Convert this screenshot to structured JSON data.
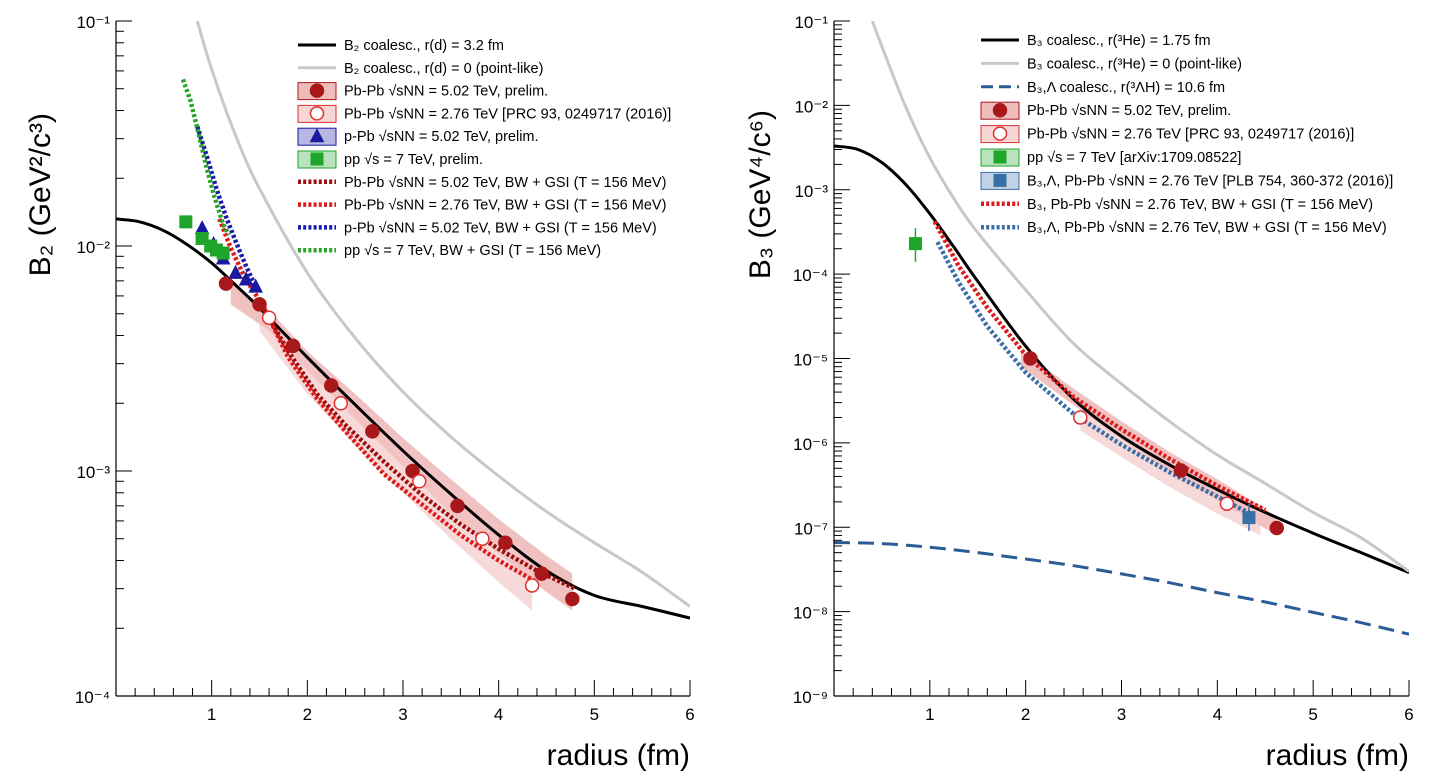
{
  "chart_data": [
    {
      "type": "line",
      "ylabel": "B₂ (GeV²/c³)",
      "xlabel": "radius (fm)",
      "xlim": [
        0,
        6
      ],
      "ylim": [
        0.0001,
        0.1
      ],
      "yscale": "log",
      "xticks": [
        "1",
        "2",
        "3",
        "4",
        "5",
        "6"
      ],
      "yticks": [
        "10⁻⁴",
        "10⁻³",
        "10⁻²",
        "10⁻¹"
      ],
      "legend_position": "top-right",
      "series": [
        {
          "name": "B₂ coalesc., r(d) = 3.2 fm",
          "kind": "line",
          "color": "#000000",
          "x": [
            0,
            0.25,
            0.5,
            0.75,
            1.0,
            1.25,
            1.5,
            2.0,
            2.5,
            3.0,
            3.5,
            4.0,
            4.5,
            5.0,
            5.5,
            6.0
          ],
          "y": [
            0.0132,
            0.0128,
            0.0117,
            0.0101,
            0.0084,
            0.0067,
            0.0053,
            0.0032,
            0.00197,
            0.00123,
            0.00079,
            0.00052,
            0.00036,
            0.00028,
            0.00025,
            0.000222
          ]
        },
        {
          "name": "B₂ coalesc., r(d) = 0 (point-like)",
          "kind": "line",
          "color": "#c8c8c8",
          "x": [
            0.85,
            1.0,
            1.25,
            1.5,
            2.0,
            2.5,
            3.0,
            3.5,
            4.0,
            4.5,
            5.0,
            5.5,
            6.0
          ],
          "y": [
            0.1,
            0.061,
            0.031,
            0.018,
            0.0076,
            0.0039,
            0.00225,
            0.00142,
            0.00095,
            0.00066,
            0.00048,
            0.000355,
            0.00025
          ]
        },
        {
          "name": "Pb-Pb √sNN = 5.02 TeV, prelim.",
          "kind": "marker",
          "marker": "circle",
          "filled": true,
          "color": "#a8181a",
          "x": [
            1.15,
            1.5,
            1.85,
            2.25,
            2.68,
            3.1,
            3.57,
            4.07,
            4.45,
            4.77
          ],
          "y": [
            0.0068,
            0.0055,
            0.0036,
            0.0024,
            0.0015,
            0.001,
            0.0007,
            0.00048,
            0.00035,
            0.00027
          ]
        },
        {
          "name": "Pb-Pb √sNN = 2.76 TeV [PRC 93, 0249717 (2016)]",
          "kind": "marker",
          "marker": "circle",
          "filled": false,
          "color": "#e03030",
          "x": [
            1.6,
            2.35,
            3.17,
            3.83,
            4.35
          ],
          "y": [
            0.0048,
            0.002,
            0.0009,
            0.0005,
            0.00031
          ]
        },
        {
          "name": "p-Pb √sNN = 5.02 TeV, prelim.",
          "kind": "marker",
          "marker": "triangle",
          "filled": true,
          "color": "#1a1aa0",
          "x": [
            0.9,
            1.02,
            1.12,
            1.25,
            1.36,
            1.46
          ],
          "y": [
            0.012,
            0.0102,
            0.0088,
            0.0076,
            0.0071,
            0.0066
          ]
        },
        {
          "name": "pp √s = 7 TeV, prelim.",
          "kind": "marker",
          "marker": "square",
          "filled": true,
          "color": "#1fa52a",
          "x": [
            0.73,
            0.9,
            0.99,
            1.05,
            1.12
          ],
          "y": [
            0.0128,
            0.0108,
            0.01,
            0.0096,
            0.0093
          ]
        },
        {
          "name": "Pb-Pb √sNN = 5.02 TeV, BW + GSI (T = 156 MeV)",
          "kind": "dotted",
          "color": "#9a0e0e",
          "x": [
            1.55,
            1.8,
            2.1,
            2.4,
            2.8,
            3.2,
            3.6,
            4.0,
            4.4,
            4.8
          ],
          "y": [
            0.0052,
            0.0034,
            0.0022,
            0.0016,
            0.0011,
            0.00078,
            0.00058,
            0.00045,
            0.00036,
            0.0003
          ]
        },
        {
          "name": "Pb-Pb √sNN = 2.76 TeV, BW + GSI (T = 156 MeV)",
          "kind": "dotted",
          "color": "#dd1a1a",
          "x": [
            1.08,
            1.2,
            1.35,
            1.55,
            1.8,
            2.1,
            2.4,
            2.8,
            3.2,
            3.6,
            4.0,
            4.4
          ],
          "y": [
            0.0132,
            0.0098,
            0.0072,
            0.0053,
            0.0032,
            0.0021,
            0.0015,
            0.00097,
            0.00071,
            0.00052,
            0.0004,
            0.00032
          ]
        },
        {
          "name": "p-Pb √sNN = 5.02 TeV, BW + GSI (T = 156 MeV)",
          "kind": "dotted",
          "color": "#1a1ab0",
          "x": [
            0.85,
            0.95,
            1.05,
            1.15,
            1.25,
            1.35,
            1.48
          ],
          "y": [
            0.034,
            0.025,
            0.018,
            0.0135,
            0.0105,
            0.0083,
            0.0063
          ]
        },
        {
          "name": "pp √s = 7 TeV, BW + GSI (T = 156 MeV)",
          "kind": "dotted",
          "color": "#2aa52a",
          "x": [
            0.7,
            0.78,
            0.86,
            0.94,
            1.02,
            1.12,
            1.18
          ],
          "y": [
            0.055,
            0.044,
            0.032,
            0.023,
            0.017,
            0.0125,
            0.0112
          ]
        }
      ],
      "bands": [
        {
          "of": "Pb-Pb √sNN = 5.02 TeV, prelim.",
          "color": "#e8a0a0",
          "x": [
            1.2,
            1.6,
            2.0,
            2.5,
            3.0,
            3.5,
            4.0,
            4.5,
            4.77
          ],
          "lower": [
            0.0055,
            0.0042,
            0.0028,
            0.0017,
            0.00105,
            0.00065,
            0.00043,
            0.00029,
            0.00024
          ],
          "upper": [
            0.0068,
            0.0052,
            0.0034,
            0.0022,
            0.0014,
            0.00092,
            0.00061,
            0.00042,
            0.00035
          ]
        },
        {
          "of": "Pb-Pb √sNN = 2.76 TeV [PRC 93, 0249717 (2016)]",
          "color": "#f4c4c4",
          "x": [
            1.5,
            2.0,
            2.5,
            3.0,
            3.5,
            4.0,
            4.35
          ],
          "lower": [
            0.0042,
            0.0022,
            0.0013,
            0.0008,
            0.0005,
            0.00032,
            0.00024
          ],
          "upper": [
            0.0058,
            0.0033,
            0.0021,
            0.0013,
            0.00083,
            0.00055,
            0.00042
          ]
        }
      ]
    },
    {
      "type": "line",
      "ylabel": "B₃ (GeV⁴/c⁶)",
      "xlabel": "radius (fm)",
      "xlim": [
        0,
        6
      ],
      "ylim": [
        1e-09,
        0.1
      ],
      "yscale": "log",
      "xticks": [
        "1",
        "2",
        "3",
        "4",
        "5",
        "6"
      ],
      "yticks": [
        "10⁻⁹",
        "10⁻⁸",
        "10⁻⁷",
        "10⁻⁶",
        "10⁻⁵",
        "10⁻⁴",
        "10⁻³",
        "10⁻²",
        "10⁻¹"
      ],
      "legend_position": "top-right",
      "series": [
        {
          "name": "B₃ coalesc., r(³He) = 1.75 fm",
          "kind": "line",
          "color": "#000000",
          "x": [
            0,
            0.25,
            0.5,
            0.75,
            1.0,
            1.25,
            1.5,
            2.0,
            2.5,
            3.0,
            3.5,
            4.0,
            4.5,
            5.0,
            5.5,
            6.0
          ],
          "y": [
            0.0033,
            0.003,
            0.0021,
            0.00115,
            0.00052,
            0.00021,
            8.2e-05,
            1.4e-05,
            3.3e-06,
            1.2e-06,
            5.5e-07,
            2.8e-07,
            1.5e-07,
            8.5e-08,
            5e-08,
            2.9e-08
          ]
        },
        {
          "name": "B₃ coalesc., r(³He) = 0 (point-like)",
          "kind": "line",
          "color": "#c8c8c8",
          "x": [
            0.4,
            0.5,
            0.75,
            1.0,
            1.25,
            1.5,
            2.0,
            2.5,
            3.0,
            3.5,
            4.0,
            4.5,
            5.0,
            5.5,
            6.0
          ],
          "y": [
            0.1,
            0.05,
            0.0095,
            0.0024,
            0.00079,
            0.00031,
            6.5e-05,
            1.5e-05,
            5e-06,
            1.8e-06,
            7.2e-07,
            3.3e-07,
            1.5e-07,
            7.5e-08,
            3e-08
          ]
        },
        {
          "name": "B₃,Λ coalesc., r(³ΛH) = 10.6 fm",
          "kind": "dashed",
          "color": "#2a5d95",
          "x": [
            0,
            0.5,
            1.0,
            1.5,
            2.0,
            2.5,
            3.0,
            3.5,
            4.0,
            4.5,
            5.0,
            5.5,
            6.0
          ],
          "y": [
            6.6e-08,
            6.4e-08,
            5.8e-08,
            5e-08,
            4.2e-08,
            3.5e-08,
            2.8e-08,
            2.2e-08,
            1.68e-08,
            1.3e-08,
            9.8e-09,
            7.4e-09,
            5.4e-09
          ]
        },
        {
          "name": "Pb-Pb √sNN = 5.02 TeV, prelim.",
          "kind": "marker",
          "marker": "circle",
          "filled": true,
          "color": "#a8181a",
          "x": [
            2.05,
            3.62,
            4.62
          ],
          "y": [
            1e-05,
            4.7e-07,
            9.8e-08
          ]
        },
        {
          "name": "Pb-Pb √sNN = 2.76 TeV [PRC 93, 0249717 (2016)]",
          "kind": "marker",
          "marker": "circle",
          "filled": false,
          "color": "#e03030",
          "x": [
            2.57,
            4.1
          ],
          "y": [
            2e-06,
            1.9e-07
          ]
        },
        {
          "name": "pp √s = 7 TeV [arXiv:1709.08522]",
          "kind": "marker",
          "marker": "square",
          "filled": true,
          "color": "#1fa52a",
          "x": [
            0.85
          ],
          "y": [
            0.00023
          ],
          "yerr_low": [
            0.00014
          ],
          "yerr_high": [
            0.00035
          ]
        },
        {
          "name": "B₃,Λ, Pb-Pb √sNN = 2.76 TeV [PLB 754, 360-372 (2016)]",
          "kind": "marker",
          "marker": "square",
          "filled": true,
          "color": "#3a70a8",
          "x": [
            4.33
          ],
          "y": [
            1.3e-07
          ],
          "yerr_low": [
            9e-08
          ],
          "yerr_high": [
            1.9e-07
          ]
        },
        {
          "name": "B₃, Pb-Pb √sNN = 2.76 TeV, BW + GSI (T = 156 MeV)",
          "kind": "dotted",
          "color": "#dd1a1a",
          "x": [
            1.05,
            1.3,
            1.6,
            2.0,
            2.5,
            3.0,
            3.5,
            4.0,
            4.5
          ],
          "y": [
            0.00042,
            0.000125,
            4e-05,
            1.1e-05,
            3.5e-06,
            1.45e-06,
            6.5e-07,
            3.1e-07,
            1.6e-07
          ]
        },
        {
          "name": "B₃,Λ, Pb-Pb √sNN = 2.76 TeV, BW + GSI (T = 156 MeV)",
          "kind": "dotted",
          "color": "#3a6fa8",
          "x": [
            1.08,
            1.3,
            1.6,
            2.0,
            2.5,
            3.0,
            3.5,
            4.0,
            4.4
          ],
          "y": [
            0.00024,
            8e-05,
            2.4e-05,
            6.8e-06,
            2.2e-06,
            9.5e-07,
            4.5e-07,
            2.3e-07,
            1.35e-07
          ]
        }
      ],
      "bands": [
        {
          "of": "Pb-Pb √sNN = 5.02 TeV, prelim.",
          "color": "#e8a0a0",
          "x": [
            1.95,
            2.5,
            3.0,
            3.5,
            4.0,
            4.62
          ],
          "lower": [
            8e-06,
            2.8e-06,
            1.1e-06,
            4.6e-07,
            2.1e-07,
            8e-08
          ],
          "upper": [
            1.25e-05,
            4.4e-06,
            1.8e-06,
            7.8e-07,
            3.7e-07,
            1.35e-07
          ]
        },
        {
          "of": "Pb-Pb √sNN = 2.76 TeV [PRC 93, 0249717 (2016)]",
          "color": "#f4c4c4",
          "x": [
            2.57,
            3.0,
            3.5,
            4.0,
            4.45
          ],
          "lower": [
            1.4e-06,
            6.8e-07,
            3e-07,
            1.45e-07,
            8e-08
          ],
          "upper": [
            2.7e-06,
            1.3e-06,
            6e-07,
            2.9e-07,
            1.65e-07
          ]
        }
      ]
    }
  ]
}
